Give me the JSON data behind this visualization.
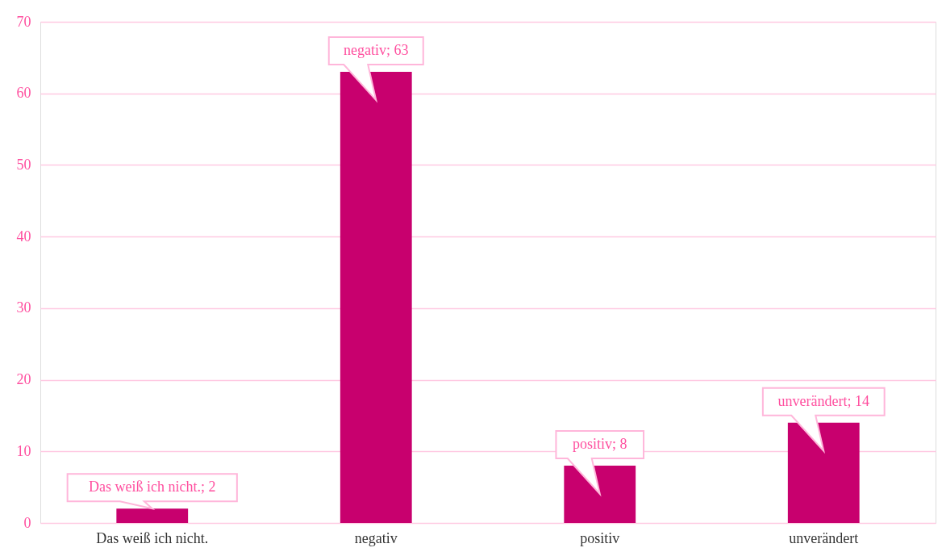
{
  "chart_data": {
    "type": "bar",
    "categories": [
      "Das weiß ich nicht.",
      "negativ",
      "positiv",
      "unverändert"
    ],
    "values": [
      2,
      63,
      8,
      14
    ],
    "color": "#c8006e",
    "value_labels": [
      "Das weiß ich nicht.; 2",
      "negativ; 63",
      "positiv; 8",
      "unverändert; 14"
    ],
    "ylim": [
      0,
      70
    ],
    "yticks": [
      0,
      10,
      20,
      30,
      40,
      50,
      60,
      70
    ],
    "grid": "y"
  }
}
